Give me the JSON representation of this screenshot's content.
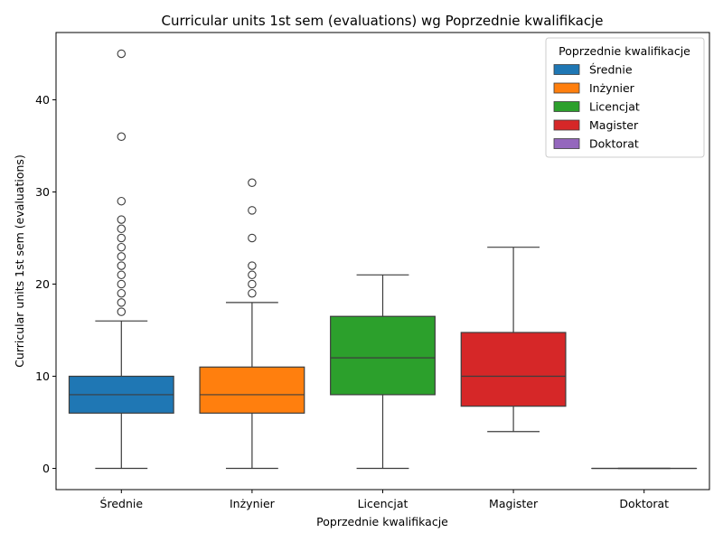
{
  "chart_data": {
    "type": "box",
    "title": "Curricular units 1st sem (evaluations) wg Poprzednie kwalifikacje",
    "xlabel": "Poprzednie kwalifikacje",
    "ylabel": "Curricular units 1st sem (evaluations)",
    "ylim": [
      -2.3,
      47.3
    ],
    "yticks": [
      0,
      10,
      20,
      30,
      40
    ],
    "legend": {
      "title": "Poprzednie kwalifikacje",
      "placement": "top-right"
    },
    "categories": [
      "Średnie",
      "Inżynier",
      "Licencjat",
      "Magister",
      "Doktorat"
    ],
    "boxes": [
      {
        "name": "Średnie",
        "color": "#1f77b4",
        "min": 0,
        "q1": 6,
        "median": 8,
        "q3": 10,
        "max": 16,
        "outliers": [
          17,
          18,
          19,
          20,
          21,
          22,
          23,
          24,
          25,
          26,
          27,
          29,
          36,
          45
        ]
      },
      {
        "name": "Inżynier",
        "color": "#ff7f0e",
        "min": 0,
        "q1": 6,
        "median": 8,
        "q3": 11,
        "max": 18,
        "outliers": [
          19,
          20,
          21,
          22,
          25,
          28,
          31
        ]
      },
      {
        "name": "Licencjat",
        "color": "#2ca02c",
        "min": 0,
        "q1": 8,
        "median": 12,
        "q3": 16.5,
        "max": 21,
        "outliers": []
      },
      {
        "name": "Magister",
        "color": "#d62728",
        "min": 4,
        "q1": 6.75,
        "median": 10,
        "q3": 14.75,
        "max": 24,
        "outliers": []
      },
      {
        "name": "Doktorat",
        "color": "#9467bd",
        "min": 0,
        "q1": 0,
        "median": 0,
        "q3": 0,
        "max": 0,
        "outliers": []
      }
    ]
  }
}
